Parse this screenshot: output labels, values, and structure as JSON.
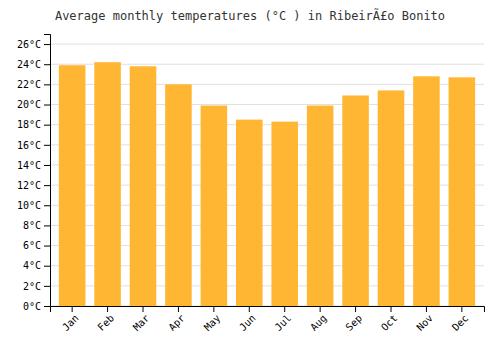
{
  "chart_data": {
    "type": "bar",
    "title": "Average monthly temperatures (°C ) in RibeirÃ£o Bonito",
    "categories": [
      "Jan",
      "Feb",
      "Mar",
      "Apr",
      "May",
      "Jun",
      "Jul",
      "Aug",
      "Sep",
      "Oct",
      "Nov",
      "Dec"
    ],
    "values": [
      23.9,
      24.2,
      23.8,
      22.0,
      19.9,
      18.5,
      18.3,
      19.9,
      20.9,
      21.4,
      22.8,
      22.7
    ],
    "color": "#FFB733",
    "ylim": [
      0,
      27
    ],
    "yticks": [
      {
        "value": 0,
        "label": "0°C"
      },
      {
        "value": 2,
        "label": "2°C"
      },
      {
        "value": 4,
        "label": "4°C"
      },
      {
        "value": 6,
        "label": "6°C"
      },
      {
        "value": 8,
        "label": "8°C"
      },
      {
        "value": 10,
        "label": "10°C"
      },
      {
        "value": 12,
        "label": "12°C"
      },
      {
        "value": 14,
        "label": "14°C"
      },
      {
        "value": 16,
        "label": "16°C"
      },
      {
        "value": 18,
        "label": "18°C"
      },
      {
        "value": 20,
        "label": "20°C"
      },
      {
        "value": 22,
        "label": "22°C"
      },
      {
        "value": 24,
        "label": "24°C"
      },
      {
        "value": 26,
        "label": "26°C"
      }
    ],
    "grid": true
  }
}
